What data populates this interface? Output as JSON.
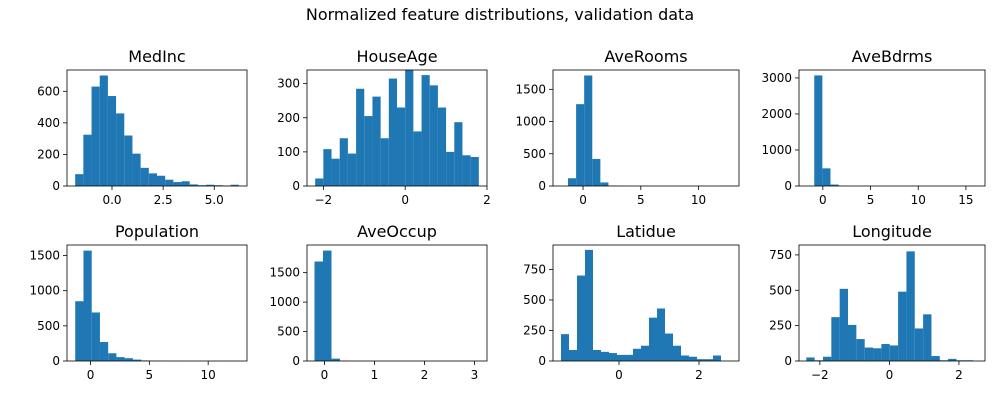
{
  "figure": {
    "title": "Normalized feature distributions, validation data"
  },
  "colors": {
    "bar": "#1f77b4",
    "axis": "#000000",
    "background": "#ffffff"
  },
  "chart_data": [
    {
      "type": "bar",
      "title": "MedInc",
      "bin_edges": [
        -1.8,
        -1.4,
        -1.0,
        -0.6,
        -0.2,
        0.2,
        0.6,
        1.0,
        1.4,
        1.8,
        2.2,
        2.6,
        3.0,
        3.4,
        3.8,
        4.2,
        4.6,
        5.0,
        5.4,
        5.8,
        6.2
      ],
      "values": [
        75,
        325,
        630,
        700,
        570,
        460,
        320,
        205,
        115,
        80,
        65,
        40,
        25,
        30,
        10,
        5,
        8,
        5,
        3,
        8
      ],
      "xlim": [
        -2.2,
        6.6
      ],
      "ylim": [
        0,
        735
      ],
      "xticks": [
        0.0,
        2.5,
        5.0
      ],
      "xtick_labels": [
        "0.0",
        "2.5",
        "5.0"
      ],
      "yticks": [
        0,
        200,
        400,
        600
      ],
      "ytick_labels": [
        "0",
        "200",
        "400",
        "600"
      ]
    },
    {
      "type": "bar",
      "title": "HouseAge",
      "bin_edges": [
        -2.2,
        -2.0,
        -1.8,
        -1.6,
        -1.4,
        -1.2,
        -1.0,
        -0.8,
        -0.6,
        -0.4,
        -0.2,
        0.0,
        0.2,
        0.4,
        0.6,
        0.8,
        1.0,
        1.2,
        1.4,
        1.6,
        1.8
      ],
      "values": [
        22,
        108,
        80,
        140,
        95,
        285,
        205,
        262,
        140,
        315,
        230,
        340,
        160,
        325,
        295,
        230,
        100,
        187,
        90,
        85
      ],
      "xlim": [
        -2.4,
        2.0
      ],
      "ylim": [
        0,
        340
      ],
      "xticks": [
        -2,
        0,
        2
      ],
      "xtick_labels": [
        "−2",
        "0",
        "2"
      ],
      "yticks": [
        0,
        100,
        200,
        300
      ],
      "ytick_labels": [
        "0",
        "100",
        "200",
        "300"
      ]
    },
    {
      "type": "bar",
      "title": "AveRooms",
      "bin_edges": [
        -1.3,
        -0.6,
        0.1,
        0.8,
        1.5,
        2.2,
        2.9,
        3.6,
        4.3,
        5.0,
        5.7,
        6.4,
        7.1,
        7.8,
        8.5,
        9.2,
        9.9,
        10.6,
        11.3,
        12.0,
        12.7
      ],
      "values": [
        120,
        1270,
        1715,
        420,
        55,
        5,
        2,
        0,
        0,
        0,
        0,
        0,
        0,
        0,
        0,
        0,
        0,
        0,
        0,
        2
      ],
      "xlim": [
        -2.6,
        13.5
      ],
      "ylim": [
        0,
        1800
      ],
      "xticks": [
        0,
        5,
        10
      ],
      "xtick_labels": [
        "0",
        "5",
        "10"
      ],
      "yticks": [
        0,
        500,
        1000,
        1500
      ],
      "ytick_labels": [
        "0",
        "500",
        "1000",
        "1500"
      ]
    },
    {
      "type": "bar",
      "title": "AveBdrms",
      "bin_edges": [
        -0.9,
        -0.05,
        0.8,
        1.65,
        2.5,
        3.35,
        4.2,
        5.05,
        5.9,
        6.75,
        7.6,
        8.45,
        9.3,
        10.15,
        11.0,
        11.85,
        12.7,
        13.55,
        14.4,
        15.25,
        16.1
      ],
      "values": [
        3070,
        490,
        40,
        5,
        0,
        0,
        0,
        0,
        0,
        0,
        0,
        0,
        0,
        0,
        0,
        0,
        0,
        0,
        0,
        2
      ],
      "xlim": [
        -2.5,
        17.0
      ],
      "ylim": [
        0,
        3220
      ],
      "xticks": [
        0,
        5,
        10,
        15
      ],
      "xtick_labels": [
        "0",
        "5",
        "10",
        "15"
      ],
      "yticks": [
        0,
        1000,
        2000,
        3000
      ],
      "ytick_labels": [
        "0",
        "1000",
        "2000",
        "3000"
      ]
    },
    {
      "type": "bar",
      "title": "Population",
      "bin_edges": [
        -1.3,
        -0.6,
        0.1,
        0.8,
        1.5,
        2.2,
        2.9,
        3.6,
        4.3,
        5.0,
        5.7,
        6.4,
        7.1,
        7.8,
        8.5,
        9.2,
        9.9,
        10.6,
        11.3,
        12.0,
        12.7
      ],
      "values": [
        850,
        1570,
        690,
        270,
        110,
        55,
        40,
        20,
        8,
        3,
        2,
        1,
        1,
        0,
        0,
        0,
        0,
        0,
        0,
        1
      ],
      "xlim": [
        -2.0,
        13.3
      ],
      "ylim": [
        0,
        1650
      ],
      "xticks": [
        0,
        5,
        10
      ],
      "xtick_labels": [
        "0",
        "5",
        "10"
      ],
      "yticks": [
        0,
        500,
        1000,
        1500
      ],
      "ytick_labels": [
        "0",
        "500",
        "1000",
        "1500"
      ]
    },
    {
      "type": "bar",
      "title": "AveOccup",
      "bin_edges": [
        -0.2,
        -0.03,
        0.14,
        0.31,
        0.48,
        0.65,
        0.82,
        0.99,
        1.16,
        1.33,
        1.5,
        1.67,
        1.84,
        2.01,
        2.18,
        2.35,
        2.52,
        2.69,
        2.86,
        3.03,
        3.2
      ],
      "values": [
        1690,
        1875,
        40,
        3,
        0,
        0,
        0,
        0,
        0,
        0,
        0,
        0,
        0,
        0,
        0,
        0,
        0,
        0,
        0,
        2
      ],
      "xlim": [
        -0.35,
        3.25
      ],
      "ylim": [
        0,
        1970
      ],
      "xticks": [
        0,
        1,
        2,
        3
      ],
      "xtick_labels": [
        "0",
        "1",
        "2",
        "3"
      ],
      "yticks": [
        0,
        500,
        1000,
        1500
      ],
      "ytick_labels": [
        "0",
        "500",
        "1000",
        "1500"
      ]
    },
    {
      "type": "bar",
      "title": "Latidue",
      "bin_edges": [
        -1.45,
        -1.25,
        -1.05,
        -0.85,
        -0.65,
        -0.45,
        -0.25,
        -0.05,
        0.15,
        0.35,
        0.55,
        0.75,
        0.95,
        1.15,
        1.35,
        1.55,
        1.75,
        1.95,
        2.15,
        2.35,
        2.55
      ],
      "values": [
        220,
        90,
        700,
        910,
        90,
        75,
        65,
        50,
        50,
        100,
        125,
        355,
        430,
        225,
        125,
        45,
        35,
        15,
        15,
        45
      ],
      "xlim": [
        -1.65,
        3.0
      ],
      "ylim": [
        0,
        950
      ],
      "xticks": [
        0,
        2
      ],
      "xtick_labels": [
        "0",
        "2"
      ],
      "yticks": [
        0,
        250,
        500,
        750
      ],
      "ytick_labels": [
        "0",
        "250",
        "500",
        "750"
      ]
    },
    {
      "type": "bar",
      "title": "Longitude",
      "bin_edges": [
        -2.39,
        -2.15,
        -1.91,
        -1.67,
        -1.43,
        -1.19,
        -0.95,
        -0.71,
        -0.47,
        -0.23,
        0.01,
        0.25,
        0.49,
        0.73,
        0.97,
        1.21,
        1.45,
        1.69,
        1.93,
        2.17,
        2.41
      ],
      "values": [
        25,
        5,
        30,
        310,
        510,
        255,
        155,
        95,
        90,
        120,
        110,
        490,
        775,
        230,
        330,
        35,
        5,
        15,
        5,
        5
      ],
      "xlim": [
        -2.6,
        2.75
      ],
      "ylim": [
        0,
        820
      ],
      "xticks": [
        -2,
        0,
        2
      ],
      "xtick_labels": [
        "−2",
        "0",
        "2"
      ],
      "yticks": [
        0,
        250,
        500,
        750
      ],
      "ytick_labels": [
        "0",
        "250",
        "500",
        "750"
      ]
    }
  ]
}
